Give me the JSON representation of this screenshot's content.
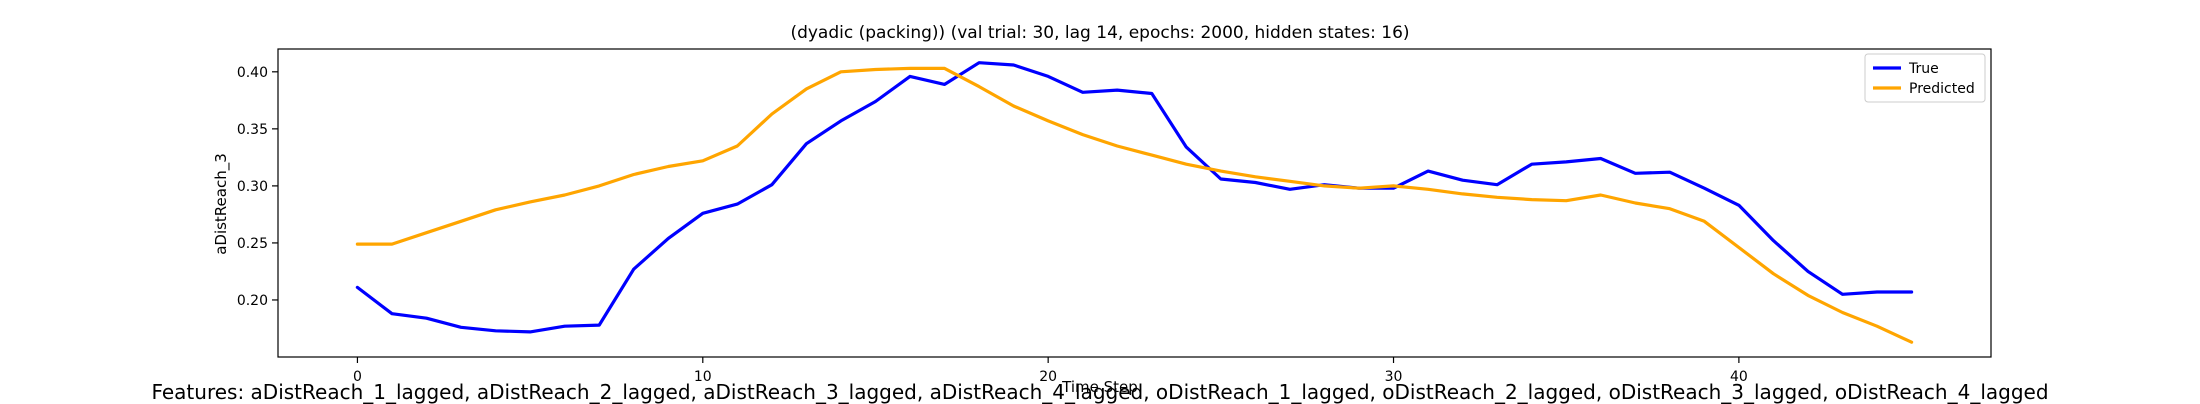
{
  "chart_data": {
    "type": "line",
    "title": "(dyadic (packing)) (val trial: 30, lag 14, epochs: 2000, hidden states: 16)",
    "xlabel": "Time Step",
    "ylabel": "aDistReach_3",
    "xlim": [
      -2.3,
      47.3
    ],
    "ylim": [
      0.15,
      0.42
    ],
    "xticks": [
      0,
      10,
      20,
      30,
      40
    ],
    "yticks": [
      0.2,
      0.25,
      0.3,
      0.35,
      0.4
    ],
    "legend_position": "top-right",
    "x": [
      0,
      1,
      2,
      3,
      4,
      5,
      6,
      7,
      8,
      9,
      10,
      11,
      12,
      13,
      14,
      15,
      16,
      17,
      18,
      19,
      20,
      21,
      22,
      23,
      24,
      25,
      26,
      27,
      28,
      29,
      30,
      31,
      32,
      33,
      34,
      35,
      36,
      37,
      38,
      39,
      40,
      41,
      42,
      43,
      44,
      45
    ],
    "series": [
      {
        "name": "True",
        "color": "#0000ff",
        "values": [
          0.211,
          0.188,
          0.184,
          0.176,
          0.173,
          0.172,
          0.177,
          0.178,
          0.227,
          0.254,
          0.276,
          0.284,
          0.301,
          0.337,
          0.357,
          0.374,
          0.396,
          0.389,
          0.408,
          0.406,
          0.396,
          0.382,
          0.384,
          0.381,
          0.334,
          0.306,
          0.303,
          0.297,
          0.301,
          0.298,
          0.298,
          0.313,
          0.305,
          0.301,
          0.319,
          0.321,
          0.324,
          0.311,
          0.312,
          0.298,
          0.283,
          0.252,
          0.225,
          0.205,
          0.207,
          0.207
        ]
      },
      {
        "name": "Predicted",
        "color": "#ffa500",
        "values": [
          0.249,
          0.249,
          0.259,
          0.269,
          0.279,
          0.286,
          0.292,
          0.3,
          0.31,
          0.317,
          0.322,
          0.335,
          0.363,
          0.385,
          0.4,
          0.402,
          0.403,
          0.403,
          0.387,
          0.37,
          0.357,
          0.345,
          0.335,
          0.327,
          0.319,
          0.313,
          0.308,
          0.304,
          0.3,
          0.298,
          0.3,
          0.297,
          0.293,
          0.29,
          0.288,
          0.287,
          0.292,
          0.285,
          0.28,
          0.269,
          0.246,
          0.223,
          0.204,
          0.189,
          0.177,
          0.163
        ]
      }
    ]
  },
  "footer": {
    "features_text": "Features: aDistReach_1_lagged, aDistReach_2_lagged, aDistReach_3_lagged, aDistReach_4_lagged, oDistReach_1_lagged, oDistReach_2_lagged, oDistReach_3_lagged, oDistReach_4_lagged"
  }
}
